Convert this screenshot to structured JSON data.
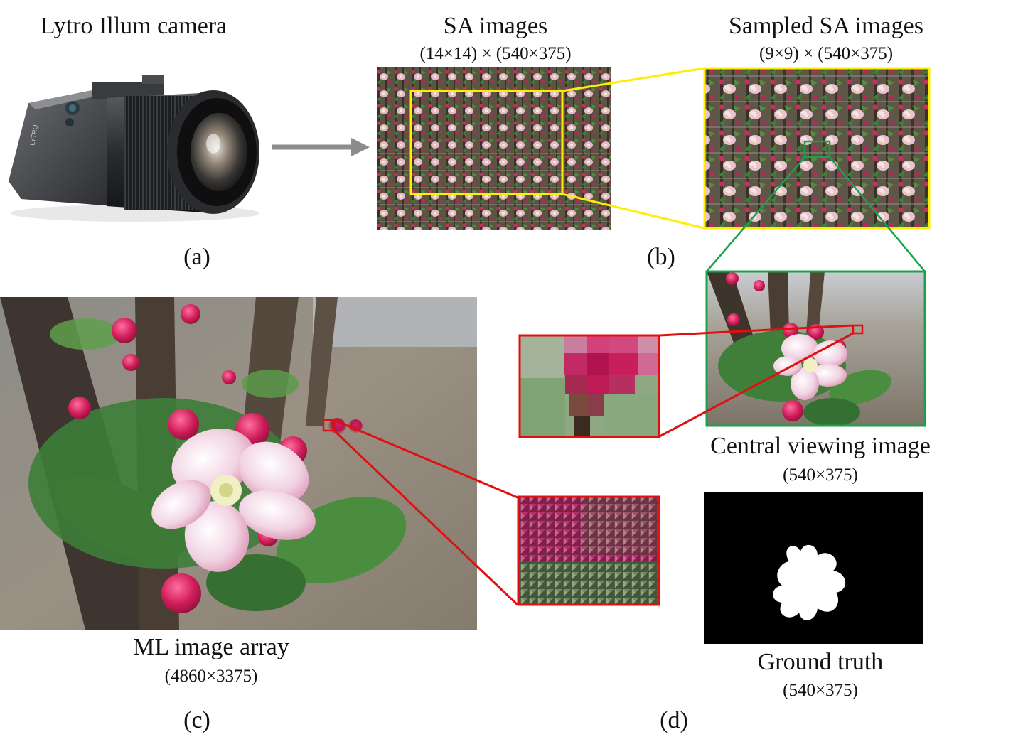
{
  "panel_a": {
    "title": "Lytro Illum camera",
    "caption": "(a)",
    "brand_text": "LYTRO"
  },
  "panel_b": {
    "sa_title": "SA images",
    "sa_dims": "(14×14) × (540×375)",
    "sampled_title": "Sampled SA images",
    "sampled_dims": "(9×9) × (540×375)",
    "caption": "(b)"
  },
  "panel_c": {
    "title": "ML image array",
    "dims": "(4860×3375)",
    "caption": "(c)"
  },
  "panel_d": {
    "central_title": "Central viewing image",
    "central_dims": "(540×375)",
    "gt_title": "Ground truth",
    "gt_dims": "(540×375)",
    "caption": "(d)"
  },
  "colors": {
    "yellow": "#ffee00",
    "green": "#1aa24a",
    "red": "#e01010",
    "arrow": "#8c8c8c"
  }
}
